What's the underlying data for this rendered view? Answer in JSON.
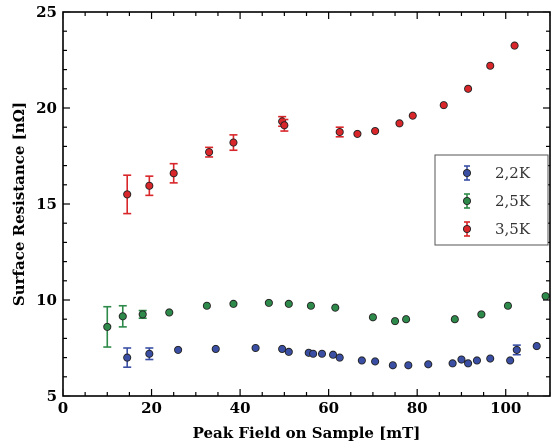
{
  "chart_data": {
    "type": "scatter",
    "title": "",
    "xlabel": "Peak Field on Sample [mT]",
    "ylabel": "Surface Resistance [nΩ]",
    "xlim": [
      0,
      110
    ],
    "ylim": [
      5,
      25
    ],
    "xticks": [
      0,
      20,
      40,
      60,
      80,
      100
    ],
    "yticks": [
      5,
      10,
      15,
      20,
      25
    ],
    "grid": false,
    "legend_position": "right",
    "series": [
      {
        "name": "2,2K",
        "color": "#3a4fa3",
        "points": [
          {
            "x": 14.5,
            "y": 7.0,
            "err": 0.5
          },
          {
            "x": 19.5,
            "y": 7.2,
            "err": 0.3
          },
          {
            "x": 26,
            "y": 7.4
          },
          {
            "x": 34.5,
            "y": 7.45
          },
          {
            "x": 43.5,
            "y": 7.5
          },
          {
            "x": 49.5,
            "y": 7.45
          },
          {
            "x": 51,
            "y": 7.3
          },
          {
            "x": 55.5,
            "y": 7.25
          },
          {
            "x": 56.5,
            "y": 7.2
          },
          {
            "x": 58.5,
            "y": 7.2
          },
          {
            "x": 61,
            "y": 7.15
          },
          {
            "x": 62.5,
            "y": 7.0
          },
          {
            "x": 67.5,
            "y": 6.85
          },
          {
            "x": 70.5,
            "y": 6.8
          },
          {
            "x": 74.5,
            "y": 6.6
          },
          {
            "x": 78,
            "y": 6.6
          },
          {
            "x": 82.5,
            "y": 6.65
          },
          {
            "x": 88,
            "y": 6.7
          },
          {
            "x": 90,
            "y": 6.9
          },
          {
            "x": 91.5,
            "y": 6.7
          },
          {
            "x": 93.5,
            "y": 6.85
          },
          {
            "x": 96.5,
            "y": 6.95
          },
          {
            "x": 101,
            "y": 6.85
          },
          {
            "x": 102.5,
            "y": 7.4,
            "err": 0.25
          },
          {
            "x": 107,
            "y": 7.6
          }
        ]
      },
      {
        "name": "2,5K",
        "color": "#2e8a4a",
        "points": [
          {
            "x": 10,
            "y": 8.6,
            "err": 1.05
          },
          {
            "x": 13.5,
            "y": 9.15,
            "err": 0.55
          },
          {
            "x": 18,
            "y": 9.25,
            "err": 0.2
          },
          {
            "x": 24,
            "y": 9.35
          },
          {
            "x": 32.5,
            "y": 9.7
          },
          {
            "x": 38.5,
            "y": 9.8
          },
          {
            "x": 46.5,
            "y": 9.85
          },
          {
            "x": 51,
            "y": 9.8
          },
          {
            "x": 56,
            "y": 9.7
          },
          {
            "x": 61.5,
            "y": 9.6
          },
          {
            "x": 70,
            "y": 9.1
          },
          {
            "x": 75,
            "y": 8.9
          },
          {
            "x": 77.5,
            "y": 9.0
          },
          {
            "x": 88.5,
            "y": 9.0
          },
          {
            "x": 94.5,
            "y": 9.25
          },
          {
            "x": 100.5,
            "y": 9.7
          },
          {
            "x": 109,
            "y": 10.2
          }
        ]
      },
      {
        "name": "3,5K",
        "color": "#d8262a",
        "points": [
          {
            "x": 14.5,
            "y": 15.5,
            "err": 1.0
          },
          {
            "x": 19.5,
            "y": 15.95,
            "err": 0.5
          },
          {
            "x": 25,
            "y": 16.6,
            "err": 0.5
          },
          {
            "x": 33,
            "y": 17.7,
            "err": 0.25
          },
          {
            "x": 38.5,
            "y": 18.2,
            "err": 0.4
          },
          {
            "x": 49.5,
            "y": 19.3,
            "err": 0.25
          },
          {
            "x": 50,
            "y": 19.1,
            "err": 0.3
          },
          {
            "x": 62.5,
            "y": 18.75,
            "err": 0.25
          },
          {
            "x": 66.5,
            "y": 18.65
          },
          {
            "x": 70.5,
            "y": 18.8
          },
          {
            "x": 76,
            "y": 19.2
          },
          {
            "x": 79,
            "y": 19.6
          },
          {
            "x": 86,
            "y": 20.15
          },
          {
            "x": 91.5,
            "y": 21.0
          },
          {
            "x": 96.5,
            "y": 22.2
          },
          {
            "x": 102,
            "y": 23.25
          }
        ]
      }
    ]
  }
}
